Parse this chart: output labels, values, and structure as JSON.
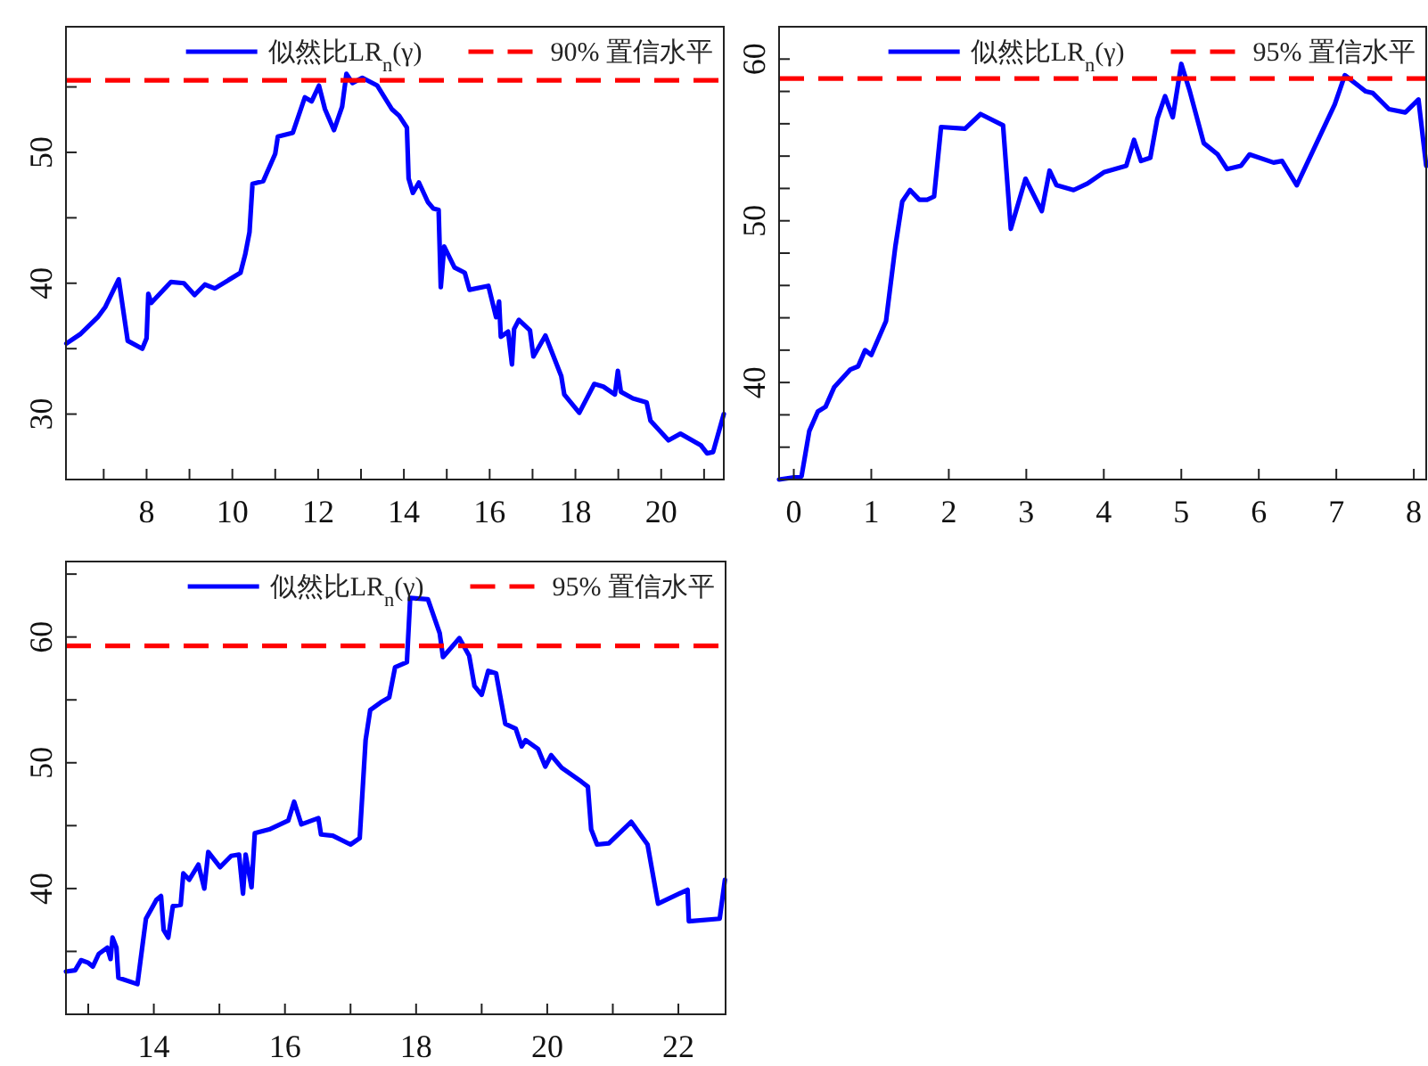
{
  "chart_data": [
    {
      "type": "line",
      "xlim": [
        6.12,
        21.46
      ],
      "ylim": [
        25,
        59.6
      ],
      "legend": "top right",
      "line_style": "solid",
      "xticks": [
        {
          "value": 7,
          "label": null
        },
        8,
        {
          "value": 9,
          "label": null
        },
        10,
        {
          "value": 11,
          "label": null
        },
        12,
        {
          "value": 13,
          "label": null
        },
        14,
        {
          "value": 15,
          "label": null
        },
        16,
        {
          "value": 17,
          "label": null
        },
        18,
        {
          "value": 19,
          "label": null
        },
        20,
        {
          "value": 21,
          "label": null
        }
      ],
      "yticks": [
        30,
        {
          "value": 35,
          "label": null
        },
        40,
        {
          "value": 45,
          "label": null
        },
        50,
        {
          "value": 55,
          "label": null
        }
      ],
      "x": [
        6.13,
        6.45,
        6.86,
        7.04,
        7.35,
        7.56,
        7.9,
        8.0,
        8.04,
        8.11,
        8.57,
        8.87,
        9.12,
        9.36,
        9.59,
        10.19,
        10.3,
        10.4,
        10.47,
        10.72,
        11.0,
        11.06,
        11.41,
        11.69,
        11.85,
        12.02,
        12.16,
        12.37,
        12.56,
        12.66,
        12.8,
        13.03,
        13.38,
        13.72,
        13.89,
        14.07,
        14.11,
        14.21,
        14.35,
        14.56,
        14.69,
        14.81,
        14.86,
        14.94,
        15.18,
        15.42,
        15.53,
        15.97,
        16.15,
        16.22,
        16.26,
        16.43,
        16.52,
        16.57,
        16.68,
        16.94,
        17.02,
        17.3,
        17.67,
        17.74,
        18.09,
        18.44,
        18.65,
        18.92,
        18.99,
        19.06,
        19.34,
        19.66,
        19.75,
        20.17,
        20.45,
        20.93,
        21.07,
        21.21,
        21.46
      ],
      "series": [
        {
          "name": "似然比LR$_{n}$(γ)",
          "color": "#0000ff",
          "values": [
            35.4,
            36.1,
            37.4,
            38.2,
            40.3,
            35.6,
            35.0,
            35.8,
            39.2,
            38.5,
            40.1,
            40.0,
            39.1,
            39.9,
            39.6,
            40.8,
            42.2,
            43.9,
            47.6,
            47.8,
            49.9,
            51.2,
            51.5,
            54.2,
            53.9,
            55.1,
            53.3,
            51.7,
            53.5,
            56.0,
            55.3,
            55.7,
            55.1,
            53.3,
            52.8,
            51.9,
            48.0,
            46.9,
            47.7,
            46.2,
            45.7,
            45.6,
            39.7,
            42.8,
            41.2,
            40.8,
            39.5,
            39.8,
            37.4,
            38.6,
            35.9,
            36.3,
            33.8,
            36.5,
            37.2,
            36.4,
            34.4,
            36.0,
            32.9,
            31.5,
            30.1,
            32.3,
            32.1,
            31.5,
            33.3,
            31.7,
            31.2,
            30.9,
            29.5,
            28.0,
            28.5,
            27.6,
            27.0,
            27.1,
            30.0
          ]
        }
      ],
      "ref_lines": [
        {
          "axis": "y",
          "value": 55.5,
          "label": "90% 置信水平",
          "color": "#ff0000",
          "line_style": "dashed"
        }
      ]
    },
    {
      "type": "line",
      "xlim": [
        -0.19,
        8.16
      ],
      "ylim": [
        34,
        62
      ],
      "legend": "top right",
      "line_style": "solid",
      "xticks": [
        0,
        1,
        2,
        3,
        4,
        5,
        6,
        7,
        8
      ],
      "yticks": [
        {
          "value": 36,
          "label": null
        },
        {
          "value": 38,
          "label": null
        },
        40,
        {
          "value": 42,
          "label": null
        },
        {
          "value": 44,
          "label": null
        },
        {
          "value": 46,
          "label": null
        },
        {
          "value": 48,
          "label": null
        },
        50,
        {
          "value": 52,
          "label": null
        },
        {
          "value": 54,
          "label": null
        },
        {
          "value": 56,
          "label": null
        },
        {
          "value": 58,
          "label": null
        },
        60
      ],
      "x": [
        -0.19,
        0.1,
        0.2,
        0.31,
        0.41,
        0.52,
        0.73,
        0.83,
        0.92,
        1.0,
        1.19,
        1.31,
        1.4,
        1.5,
        1.62,
        1.72,
        1.81,
        1.9,
        2.21,
        2.41,
        2.7,
        2.8,
        2.99,
        3.2,
        3.3,
        3.39,
        3.61,
        3.79,
        4.0,
        4.29,
        4.39,
        4.48,
        4.6,
        4.69,
        4.79,
        4.89,
        5.0,
        5.11,
        5.29,
        5.47,
        5.59,
        5.77,
        5.88,
        6.19,
        6.3,
        6.49,
        6.98,
        7.11,
        7.38,
        7.47,
        7.68,
        7.89,
        8.06,
        8.16
      ],
      "series": [
        {
          "name": "似然比LR$_{n}$(γ)",
          "color": "#0000ff",
          "values": [
            34.0,
            34.2,
            37.0,
            38.2,
            38.5,
            39.7,
            40.8,
            41.0,
            42.0,
            41.7,
            43.8,
            48.4,
            51.2,
            51.9,
            51.3,
            51.3,
            51.5,
            55.8,
            55.7,
            56.6,
            55.9,
            49.5,
            52.6,
            50.6,
            53.1,
            52.2,
            51.9,
            52.3,
            53.0,
            53.4,
            55.0,
            53.7,
            53.9,
            56.3,
            57.7,
            56.4,
            59.7,
            58.0,
            54.8,
            54.1,
            53.2,
            53.4,
            54.1,
            53.6,
            53.7,
            52.2,
            57.2,
            59.0,
            58.0,
            57.9,
            56.9,
            56.7,
            57.5,
            53.4
          ]
        }
      ],
      "ref_lines": [
        {
          "axis": "y",
          "value": 58.8,
          "label": "95% 置信水平",
          "color": "#ff0000",
          "line_style": "dashed"
        }
      ]
    },
    {
      "type": "line",
      "xlim": [
        12.66,
        22.72
      ],
      "ylim": [
        30,
        66
      ],
      "legend": "top right",
      "line_style": "solid",
      "xticks": [
        {
          "value": 13,
          "label": null
        },
        14,
        {
          "value": 15,
          "label": null
        },
        16,
        {
          "value": 17,
          "label": null
        },
        18,
        {
          "value": 19,
          "label": null
        },
        20,
        {
          "value": 21,
          "label": null
        },
        22
      ],
      "yticks": [
        {
          "value": 35,
          "label": null
        },
        40,
        {
          "value": 45,
          "label": null
        },
        50,
        {
          "value": 55,
          "label": null
        },
        60,
        {
          "value": 65,
          "label": null
        }
      ],
      "x": [
        12.66,
        12.8,
        12.89,
        13.0,
        13.07,
        13.16,
        13.29,
        13.34,
        13.37,
        13.43,
        13.46,
        13.75,
        13.88,
        14.04,
        14.11,
        14.15,
        14.22,
        14.29,
        14.41,
        14.45,
        14.54,
        14.68,
        14.77,
        14.83,
        15.01,
        15.18,
        15.3,
        15.36,
        15.4,
        15.49,
        15.54,
        15.76,
        16.05,
        16.14,
        16.25,
        16.51,
        16.55,
        16.73,
        17.0,
        17.14,
        17.23,
        17.3,
        17.46,
        17.59,
        17.68,
        17.86,
        17.91,
        18.18,
        18.36,
        18.41,
        18.66,
        18.81,
        18.89,
        19.0,
        19.1,
        19.22,
        19.36,
        19.52,
        19.61,
        19.67,
        19.86,
        19.97,
        20.06,
        20.22,
        20.52,
        20.62,
        20.67,
        20.76,
        20.94,
        21.28,
        21.53,
        21.69,
        22.14,
        22.16,
        22.63,
        22.71
      ],
      "series": [
        {
          "name": "似然比LR$_{n}$(γ)",
          "color": "#0000ff",
          "values": [
            33.4,
            33.5,
            34.3,
            34.1,
            33.8,
            34.8,
            35.3,
            34.4,
            36.1,
            35.3,
            32.9,
            32.4,
            37.6,
            39.1,
            39.4,
            36.7,
            36.1,
            38.6,
            38.7,
            41.2,
            40.7,
            41.9,
            40.0,
            42.9,
            41.7,
            42.6,
            42.7,
            39.6,
            42.7,
            40.1,
            44.4,
            44.7,
            45.4,
            46.9,
            45.1,
            45.6,
            44.3,
            44.2,
            43.5,
            44.0,
            51.8,
            54.2,
            54.8,
            55.2,
            57.6,
            58.0,
            63.1,
            63.0,
            60.3,
            58.4,
            59.9,
            58.5,
            56.1,
            55.4,
            57.3,
            57.1,
            53.1,
            52.7,
            51.3,
            51.8,
            51.1,
            49.7,
            50.6,
            49.6,
            48.5,
            48.1,
            44.7,
            43.5,
            43.6,
            45.3,
            43.5,
            38.8,
            39.9,
            37.4,
            37.6,
            40.7
          ]
        }
      ],
      "ref_lines": [
        {
          "axis": "y",
          "value": 59.3,
          "label": "95% 置信水平",
          "color": "#ff0000",
          "line_style": "dashed"
        }
      ]
    }
  ]
}
